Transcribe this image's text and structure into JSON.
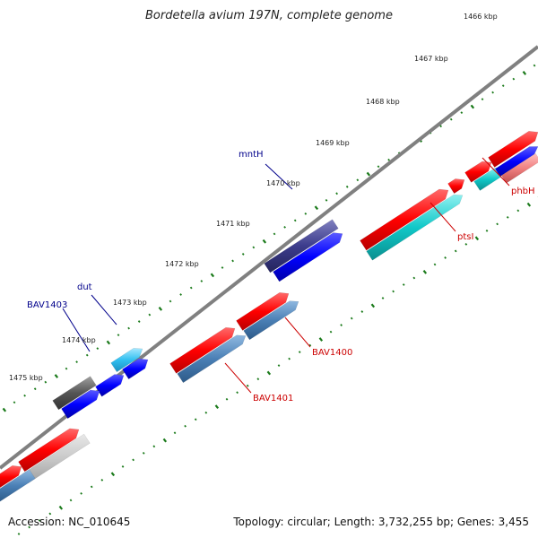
{
  "title": "Bordetella avium 197N, complete genome",
  "footer": {
    "accession": "Accession: NC_010645",
    "topology": "Topology: circular; Length: 3,732,255 bp; Genes: 3,455"
  },
  "colors": {
    "forward_cds": "#ff0000",
    "reverse_cds": "#0000ff",
    "forward_gene": "#4a7fb5",
    "label_forward": "#cc0000",
    "label_reverse": "#00008b",
    "backbone": "#808080",
    "ticks": "#1a7a1a"
  },
  "scale_labels": [
    "1466 kbp",
    "1467 kbp",
    "1468 kbp",
    "1469 kbp",
    "1470 kbp",
    "1471 kbp",
    "1472 kbp",
    "1473 kbp",
    "1474 kbp",
    "1475 kbp"
  ],
  "gene_labels": {
    "phbH": "phbH",
    "ptsI": "ptsI",
    "BAV1400": "BAV1400",
    "BAV1401": "BAV1401",
    "mntH": "mntH",
    "dut": "dut",
    "BAV1403": "BAV1403"
  }
}
